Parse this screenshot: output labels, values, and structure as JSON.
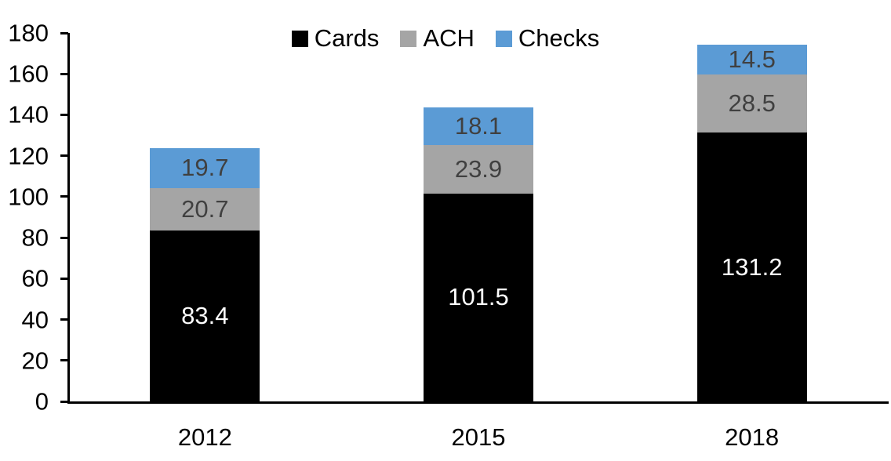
{
  "chart_data": {
    "type": "bar",
    "stacked": true,
    "title": "",
    "xlabel": "",
    "ylabel": "",
    "categories": [
      "2012",
      "2015",
      "2018"
    ],
    "series": [
      {
        "name": "Cards",
        "color": "#000000",
        "label_color": "#ffffff",
        "values": [
          83.4,
          101.5,
          131.2
        ]
      },
      {
        "name": "ACH",
        "color": "#A5A5A5",
        "label_color": "#404040",
        "values": [
          20.7,
          23.9,
          28.5
        ]
      },
      {
        "name": "Checks",
        "color": "#5B9BD5",
        "label_color": "#404040",
        "values": [
          19.7,
          18.1,
          14.5
        ]
      }
    ],
    "yticks": [
      0,
      20,
      40,
      60,
      80,
      100,
      120,
      140,
      160,
      180
    ],
    "ylim": [
      0,
      180
    ],
    "grid": false,
    "legend_position": "top-center",
    "data_labels": true,
    "axis_color": "#000000",
    "text_color": "#000000"
  }
}
